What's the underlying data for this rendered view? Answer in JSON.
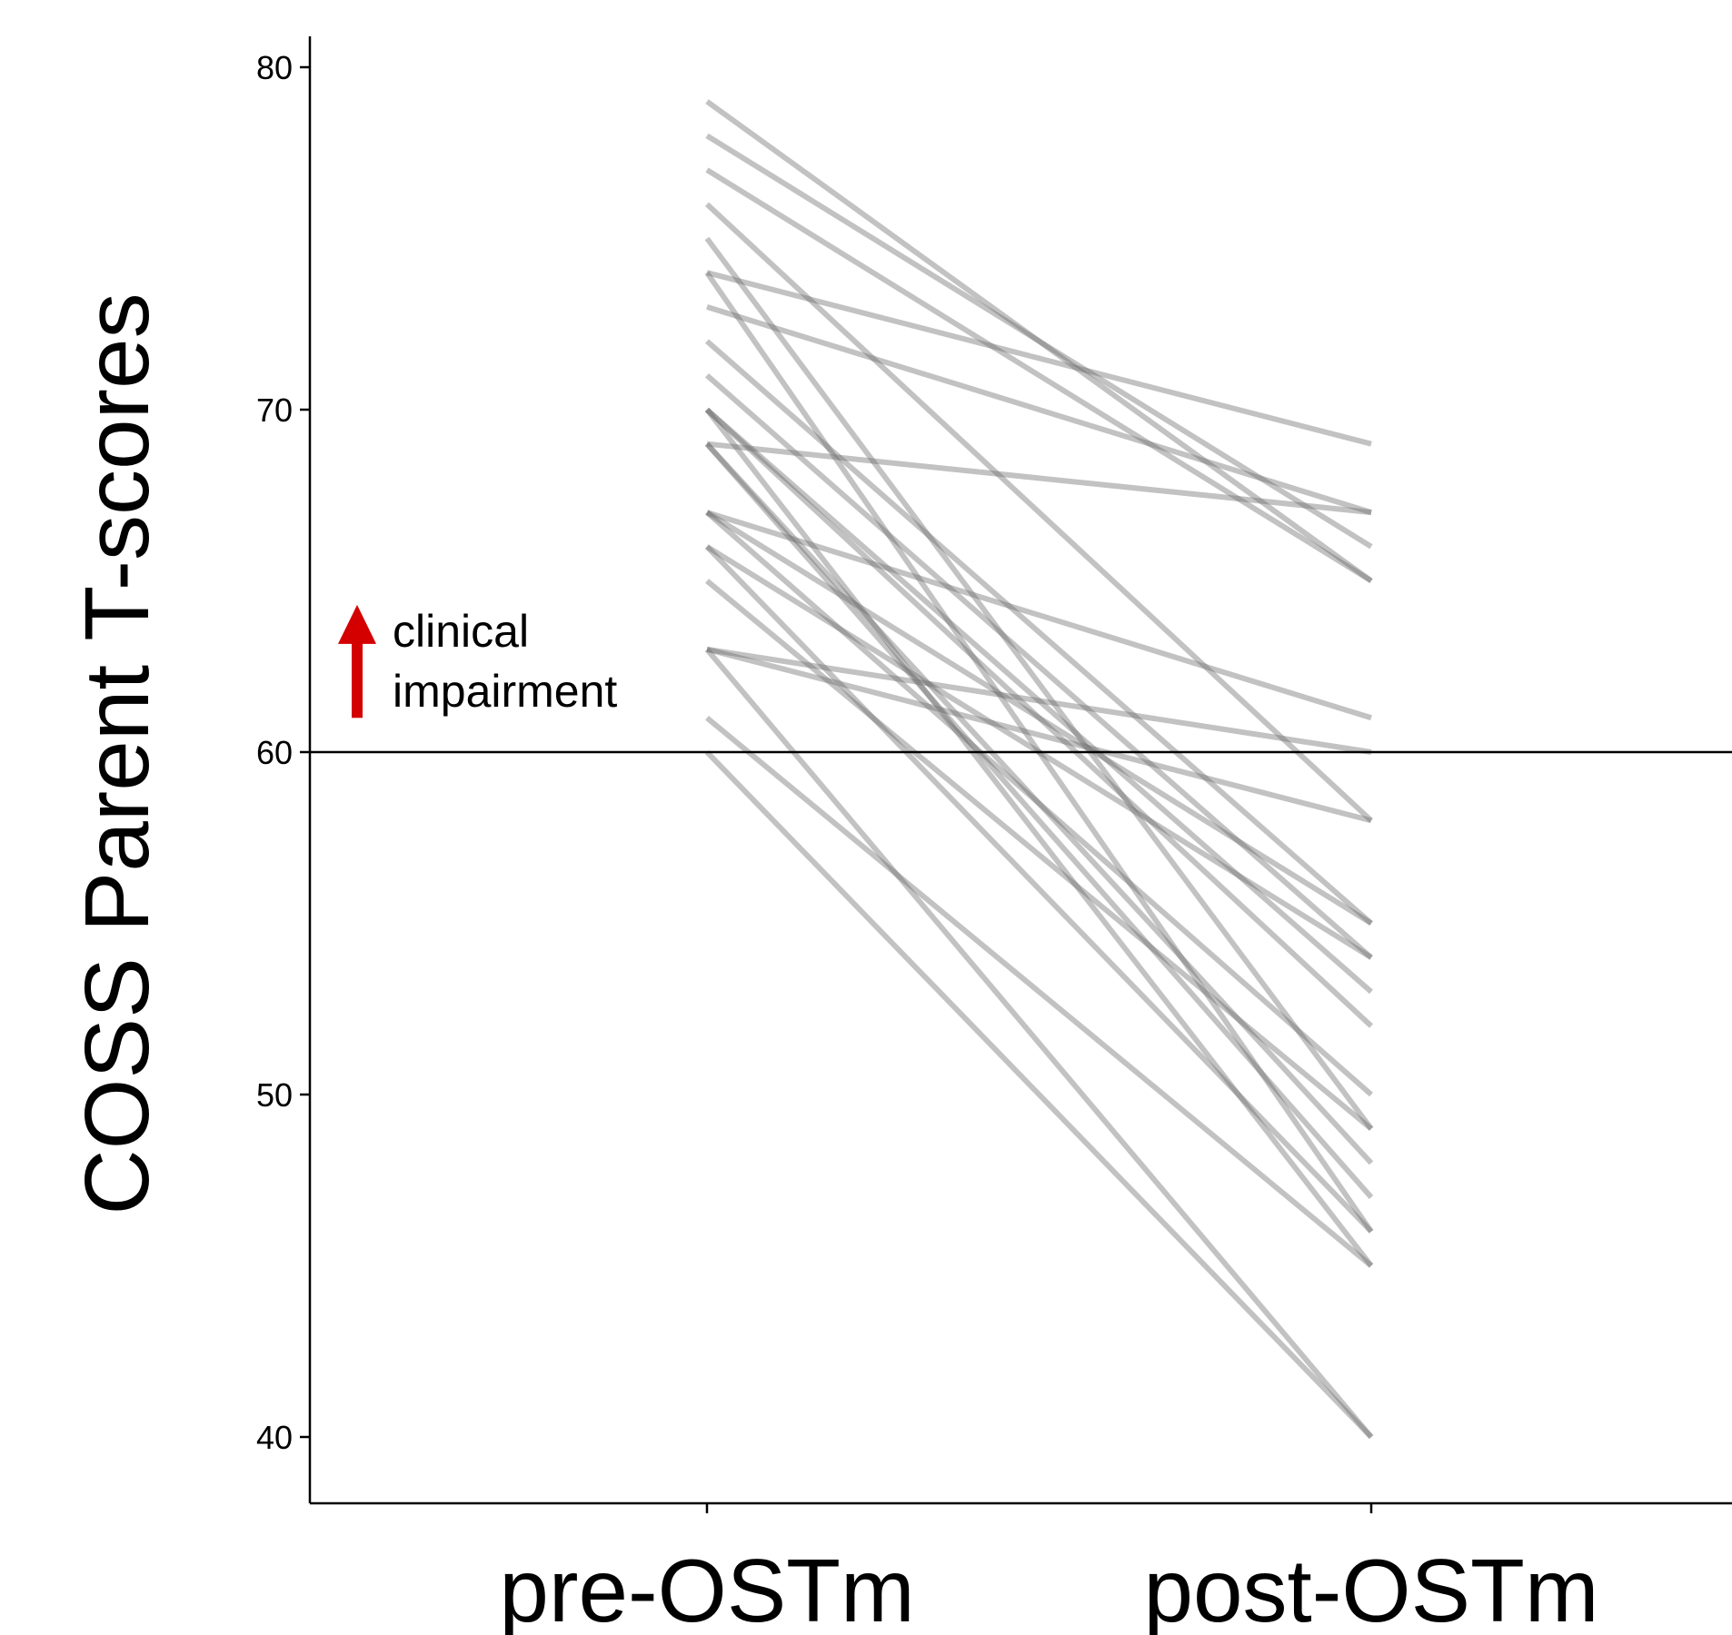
{
  "chart_data": {
    "type": "line",
    "title": "",
    "xlabel": "",
    "ylabel": "COSS Parent T-scores",
    "categories": [
      "pre-OSTm",
      "post-OSTm"
    ],
    "yticks": [
      40,
      50,
      60,
      70,
      80
    ],
    "ylim": [
      38,
      81
    ],
    "grid": false,
    "legend": "none",
    "line_color": "#6e6e6e",
    "reference_line": {
      "y": 60
    },
    "annotation": {
      "line1": "clinical",
      "line2": "impairment",
      "arrow": "up-arrow-icon",
      "arrow_color": "#d40000",
      "y_from": 61,
      "y_to": 64.3
    },
    "series": [
      {
        "values": [
          79,
          65
        ]
      },
      {
        "values": [
          78,
          66
        ]
      },
      {
        "values": [
          77,
          65
        ]
      },
      {
        "values": [
          76,
          58
        ]
      },
      {
        "values": [
          75,
          49
        ]
      },
      {
        "values": [
          74,
          69
        ]
      },
      {
        "values": [
          74,
          46
        ]
      },
      {
        "values": [
          73,
          67
        ]
      },
      {
        "values": [
          72,
          55
        ]
      },
      {
        "values": [
          71,
          54
        ]
      },
      {
        "values": [
          70,
          53
        ]
      },
      {
        "values": [
          70,
          45
        ]
      },
      {
        "values": [
          70,
          52
        ]
      },
      {
        "values": [
          69,
          67
        ]
      },
      {
        "values": [
          69,
          48
        ]
      },
      {
        "values": [
          69,
          47
        ]
      },
      {
        "values": [
          67,
          61
        ]
      },
      {
        "values": [
          67,
          55
        ]
      },
      {
        "values": [
          67,
          50
        ]
      },
      {
        "values": [
          66,
          54
        ]
      },
      {
        "values": [
          66,
          46
        ]
      },
      {
        "values": [
          65,
          49
        ]
      },
      {
        "values": [
          63,
          60
        ]
      },
      {
        "values": [
          63,
          40
        ]
      },
      {
        "values": [
          63,
          58
        ]
      },
      {
        "values": [
          61,
          45
        ]
      },
      {
        "values": [
          60,
          40
        ]
      }
    ]
  }
}
